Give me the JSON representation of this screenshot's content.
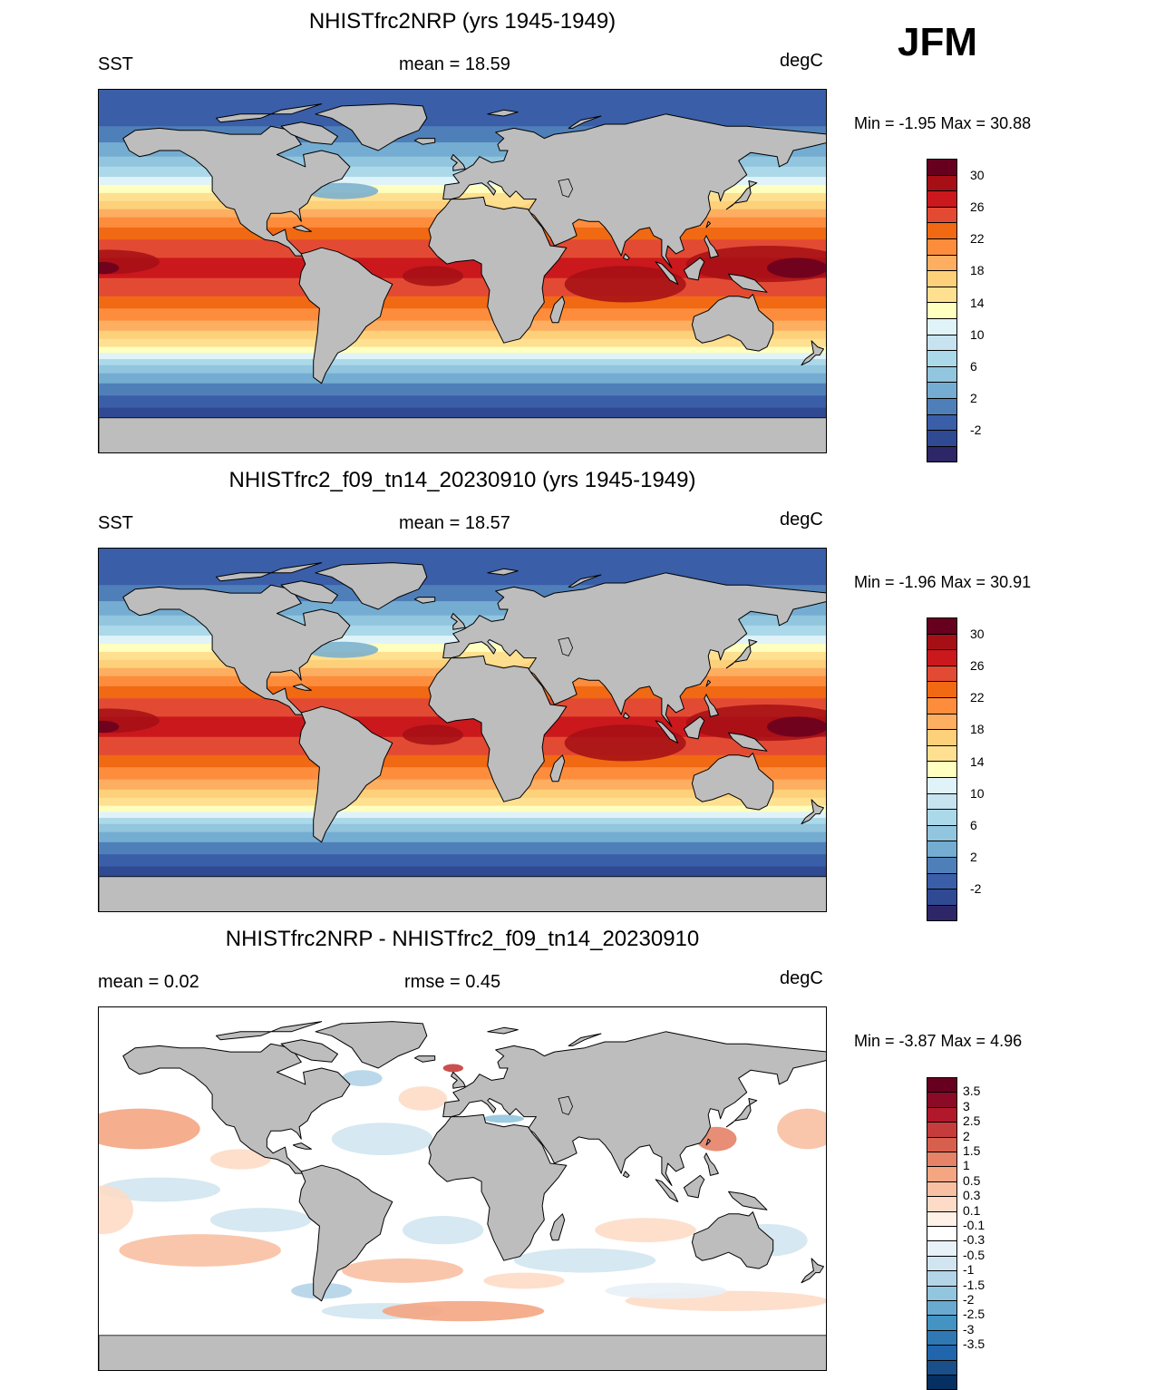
{
  "season": "JFM",
  "panels": [
    {
      "id": "panel-1",
      "title": "NHISTfrc2NRP (yrs 1945-1949)",
      "left_label": "SST",
      "center_label": "mean =  18.59",
      "right_label": "degC",
      "minmax": "Min =  -1.95 Max =  30.88",
      "kind": "sst"
    },
    {
      "id": "panel-2",
      "title": "NHISTfrc2_f09_tn14_20230910 (yrs 1945-1949)",
      "left_label": "SST",
      "center_label": "mean =  18.57",
      "right_label": "degC",
      "minmax": "Min =  -1.96 Max =  30.91",
      "kind": "sst"
    },
    {
      "id": "panel-3",
      "title": "NHISTfrc2NRP - NHISTfrc2_f09_tn14_20230910",
      "left_label": "mean =   0.02",
      "center_label": "rmse =   0.45",
      "right_label": "degC",
      "minmax": "Min =  -3.87 Max =   4.96",
      "kind": "diff"
    }
  ],
  "sst_colorbar": {
    "colors": [
      "#67001f",
      "#a50f15",
      "#cb181d",
      "#e34a33",
      "#f16913",
      "#fd8d3c",
      "#fdae61",
      "#fdd07a",
      "#fee090",
      "#ffffbf",
      "#e0f3f8",
      "#c6e3ef",
      "#abd9e9",
      "#92c5de",
      "#74add1",
      "#4f7fb8",
      "#3a5ea8",
      "#2f4a93",
      "#2d2667"
    ],
    "labels": [
      "30",
      "26",
      "22",
      "18",
      "14",
      "10",
      "6",
      "2",
      "-2"
    ]
  },
  "diff_colorbar": {
    "colors": [
      "#67001f",
      "#8b0a26",
      "#b2182b",
      "#c63c3c",
      "#d6604d",
      "#e58267",
      "#f4a582",
      "#f8c0a3",
      "#fddbc7",
      "#fff0e8",
      "#ffffff",
      "#e8f1f7",
      "#d1e5f0",
      "#b4d4e8",
      "#92c5de",
      "#6aaad0",
      "#4393c3",
      "#2f78b4",
      "#2166ac",
      "#1a4f8a",
      "#053061"
    ],
    "labels": [
      "3.5",
      "3",
      "2.5",
      "2",
      "1.5",
      "1",
      "0.5",
      "0.3",
      "0.1",
      "-0.1",
      "-0.3",
      "-0.5",
      "-1",
      "-1.5",
      "-2",
      "-2.5",
      "-3",
      "-3.5"
    ]
  }
}
